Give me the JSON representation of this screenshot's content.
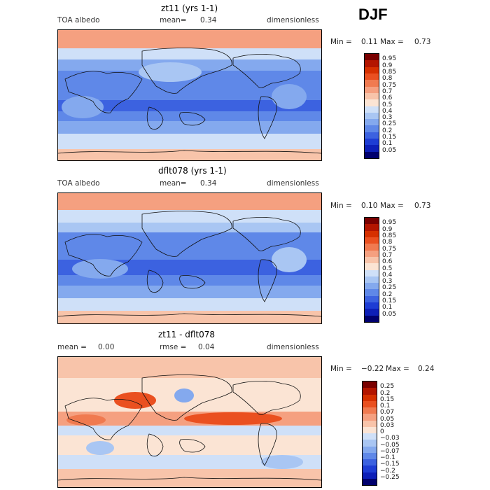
{
  "season": "DJF",
  "panels": [
    {
      "title": "zt11 (yrs 1-1)",
      "left_label": "TOA albedo",
      "mean_label": "mean=",
      "mean_value": "0.34",
      "units": "dimensionless",
      "min_label": "Min =",
      "min_value": "0.11",
      "max_label": "Max =",
      "max_value": "0.73",
      "colorbar_labels": [
        "0.95",
        "0.9",
        "0.85",
        "0.8",
        "0.75",
        "0.7",
        "0.6",
        "0.5",
        "0.4",
        "0.3",
        "0.25",
        "0.2",
        "0.15",
        "0.1",
        "0.05"
      ],
      "colorbar_colors": [
        "#7a0000",
        "#b31500",
        "#d63000",
        "#ea5020",
        "#f07a50",
        "#f5a080",
        "#f8c4aa",
        "#fbe4d4",
        "#cfe0f8",
        "#a9c6f3",
        "#84a9ee",
        "#5f88e8",
        "#3c62e0",
        "#1e3dd4",
        "#0d1fb8",
        "#00006e"
      ]
    },
    {
      "title": "dflt078 (yrs 1-1)",
      "left_label": "TOA albedo",
      "mean_label": "mean=",
      "mean_value": "0.34",
      "units": "dimensionless",
      "min_label": "Min =",
      "min_value": "0.10",
      "max_label": "Max =",
      "max_value": "0.73",
      "colorbar_labels": [
        "0.95",
        "0.9",
        "0.85",
        "0.8",
        "0.75",
        "0.7",
        "0.6",
        "0.5",
        "0.4",
        "0.3",
        "0.25",
        "0.2",
        "0.15",
        "0.1",
        "0.05"
      ],
      "colorbar_colors": [
        "#7a0000",
        "#b31500",
        "#d63000",
        "#ea5020",
        "#f07a50",
        "#f5a080",
        "#f8c4aa",
        "#fbe4d4",
        "#cfe0f8",
        "#a9c6f3",
        "#84a9ee",
        "#5f88e8",
        "#3c62e0",
        "#1e3dd4",
        "#0d1fb8",
        "#00006e"
      ]
    },
    {
      "title": "zt11 - dflt078",
      "mean_label": "mean =",
      "mean_value": "0.00",
      "rmse_label": "rmse =",
      "rmse_value": "0.04",
      "units": "dimensionless",
      "min_label": "Min =",
      "min_value": "−0.22",
      "max_label": "Max =",
      "max_value": "0.24",
      "colorbar_labels": [
        "0.25",
        "0.2",
        "0.15",
        "0.1",
        "0.07",
        "0.05",
        "0.03",
        "0",
        "−0.03",
        "−0.05",
        "−0.07",
        "−0.1",
        "−0.15",
        "−0.2",
        "−0.25"
      ],
      "colorbar_colors": [
        "#7a0000",
        "#b31500",
        "#d63000",
        "#ea5020",
        "#f07a50",
        "#f5a080",
        "#f8c4aa",
        "#fbe4d4",
        "#cfe0f8",
        "#a9c6f3",
        "#84a9ee",
        "#5f88e8",
        "#3c62e0",
        "#1e3dd4",
        "#0d1fb8",
        "#00006e"
      ]
    }
  ]
}
